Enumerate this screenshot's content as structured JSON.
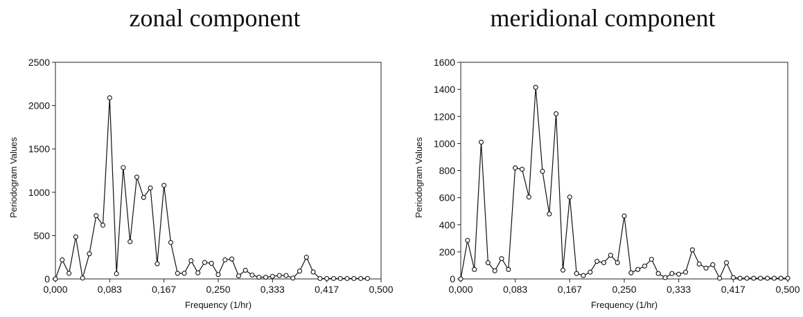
{
  "charts": [
    {
      "title": "zonal component"
    },
    {
      "title": "meridional component"
    }
  ],
  "chart_data": [
    {
      "type": "line",
      "title": "zonal component",
      "xlabel": "Frequency (1/hr)",
      "ylabel": "Periodogram Values",
      "xlim": [
        0,
        0.5
      ],
      "ylim": [
        0,
        2500
      ],
      "xticks": [
        "0,000",
        "0,083",
        "0,167",
        "0,250",
        "0,333",
        "0,417",
        "0,500"
      ],
      "yticks": [
        "0",
        "500",
        "1000",
        "1500",
        "2000",
        "2500"
      ],
      "grid": false,
      "series": [
        {
          "x": [
            0.0,
            0.0104,
            0.0208,
            0.0313,
            0.0417,
            0.0521,
            0.0625,
            0.0729,
            0.0833,
            0.0938,
            0.1042,
            0.1146,
            0.125,
            0.1354,
            0.1458,
            0.1563,
            0.1667,
            0.1771,
            0.1875,
            0.1979,
            0.2083,
            0.2188,
            0.2292,
            0.2396,
            0.25,
            0.2604,
            0.2708,
            0.2813,
            0.2917,
            0.3021,
            0.3125,
            0.3229,
            0.3333,
            0.3438,
            0.3542,
            0.3646,
            0.375,
            0.3854,
            0.3958,
            0.4063,
            0.4167,
            0.4271,
            0.4375,
            0.4479,
            0.4583,
            0.4688,
            0.4792
          ],
          "values": [
            0,
            220,
            65,
            485,
            10,
            290,
            730,
            620,
            2090,
            60,
            1285,
            430,
            1175,
            940,
            1050,
            175,
            1080,
            420,
            65,
            65,
            210,
            70,
            190,
            180,
            50,
            220,
            230,
            35,
            100,
            45,
            20,
            20,
            30,
            40,
            40,
            10,
            90,
            250,
            80,
            5,
            5,
            5,
            5,
            5,
            5,
            5,
            5
          ]
        }
      ]
    },
    {
      "type": "line",
      "title": "meridional component",
      "xlabel": "Frequency (1/hr)",
      "ylabel": "Periodogram Values",
      "xlim": [
        0,
        0.5
      ],
      "ylim": [
        0,
        1600
      ],
      "xticks": [
        "0,000",
        "0,083",
        "0,167",
        "0,250",
        "0,333",
        "0,417",
        "0,500"
      ],
      "yticks": [
        "0",
        "200",
        "400",
        "600",
        "800",
        "1000",
        "1200",
        "1400",
        "1600"
      ],
      "grid": false,
      "series": [
        {
          "x": [
            0.0,
            0.0104,
            0.0208,
            0.0313,
            0.0417,
            0.0521,
            0.0625,
            0.0729,
            0.0833,
            0.0938,
            0.1042,
            0.1146,
            0.125,
            0.1354,
            0.1458,
            0.1563,
            0.1667,
            0.1771,
            0.1875,
            0.1979,
            0.2083,
            0.2188,
            0.2292,
            0.2396,
            0.25,
            0.2604,
            0.2708,
            0.2813,
            0.2917,
            0.3021,
            0.3125,
            0.3229,
            0.3333,
            0.3438,
            0.3542,
            0.3646,
            0.375,
            0.3854,
            0.3958,
            0.4063,
            0.4167,
            0.4271,
            0.4375,
            0.4479,
            0.4583,
            0.4688,
            0.4792,
            0.4896,
            0.5
          ],
          "values": [
            0,
            285,
            70,
            1010,
            120,
            60,
            150,
            70,
            820,
            810,
            605,
            1415,
            795,
            480,
            1220,
            65,
            605,
            40,
            25,
            50,
            130,
            120,
            175,
            120,
            465,
            45,
            70,
            95,
            145,
            40,
            10,
            40,
            35,
            50,
            215,
            110,
            80,
            105,
            5,
            120,
            10,
            5,
            5,
            5,
            5,
            5,
            5,
            5,
            5
          ]
        }
      ]
    }
  ]
}
